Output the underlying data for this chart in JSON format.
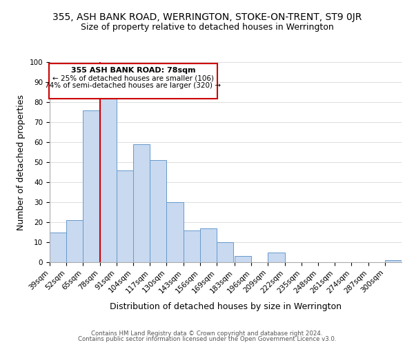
{
  "title": "355, ASH BANK ROAD, WERRINGTON, STOKE-ON-TRENT, ST9 0JR",
  "subtitle": "Size of property relative to detached houses in Werrington",
  "xlabel": "Distribution of detached houses by size in Werrington",
  "ylabel": "Number of detached properties",
  "bar_color": "#c8d9f0",
  "bar_edge_color": "#6699cc",
  "reference_line_x": 78,
  "reference_line_color": "#cc0000",
  "categories": [
    "39sqm",
    "52sqm",
    "65sqm",
    "78sqm",
    "91sqm",
    "104sqm",
    "117sqm",
    "130sqm",
    "143sqm",
    "156sqm",
    "169sqm",
    "183sqm",
    "196sqm",
    "209sqm",
    "222sqm",
    "235sqm",
    "248sqm",
    "261sqm",
    "274sqm",
    "287sqm",
    "300sqm"
  ],
  "bin_edges": [
    39,
    52,
    65,
    78,
    91,
    104,
    117,
    130,
    143,
    156,
    169,
    183,
    196,
    209,
    222,
    235,
    248,
    261,
    274,
    287,
    300
  ],
  "values": [
    15,
    21,
    76,
    82,
    46,
    59,
    51,
    30,
    16,
    17,
    10,
    3,
    0,
    5,
    0,
    0,
    0,
    0,
    0,
    0,
    1
  ],
  "ylim": [
    0,
    100
  ],
  "yticks": [
    0,
    10,
    20,
    30,
    40,
    50,
    60,
    70,
    80,
    90,
    100
  ],
  "annotation_title": "355 ASH BANK ROAD: 78sqm",
  "annotation_line1": "← 25% of detached houses are smaller (106)",
  "annotation_line2": "74% of semi-detached houses are larger (320) →",
  "footer_line1": "Contains HM Land Registry data © Crown copyright and database right 2024.",
  "footer_line2": "Contains public sector information licensed under the Open Government Licence v3.0.",
  "background_color": "#ffffff",
  "grid_color": "#dddddd",
  "title_fontsize": 10,
  "subtitle_fontsize": 9,
  "axis_label_fontsize": 9,
  "tick_fontsize": 7.5,
  "annotation_box_edge_color": "#cc0000",
  "annotation_box_bg": "#ffffff"
}
